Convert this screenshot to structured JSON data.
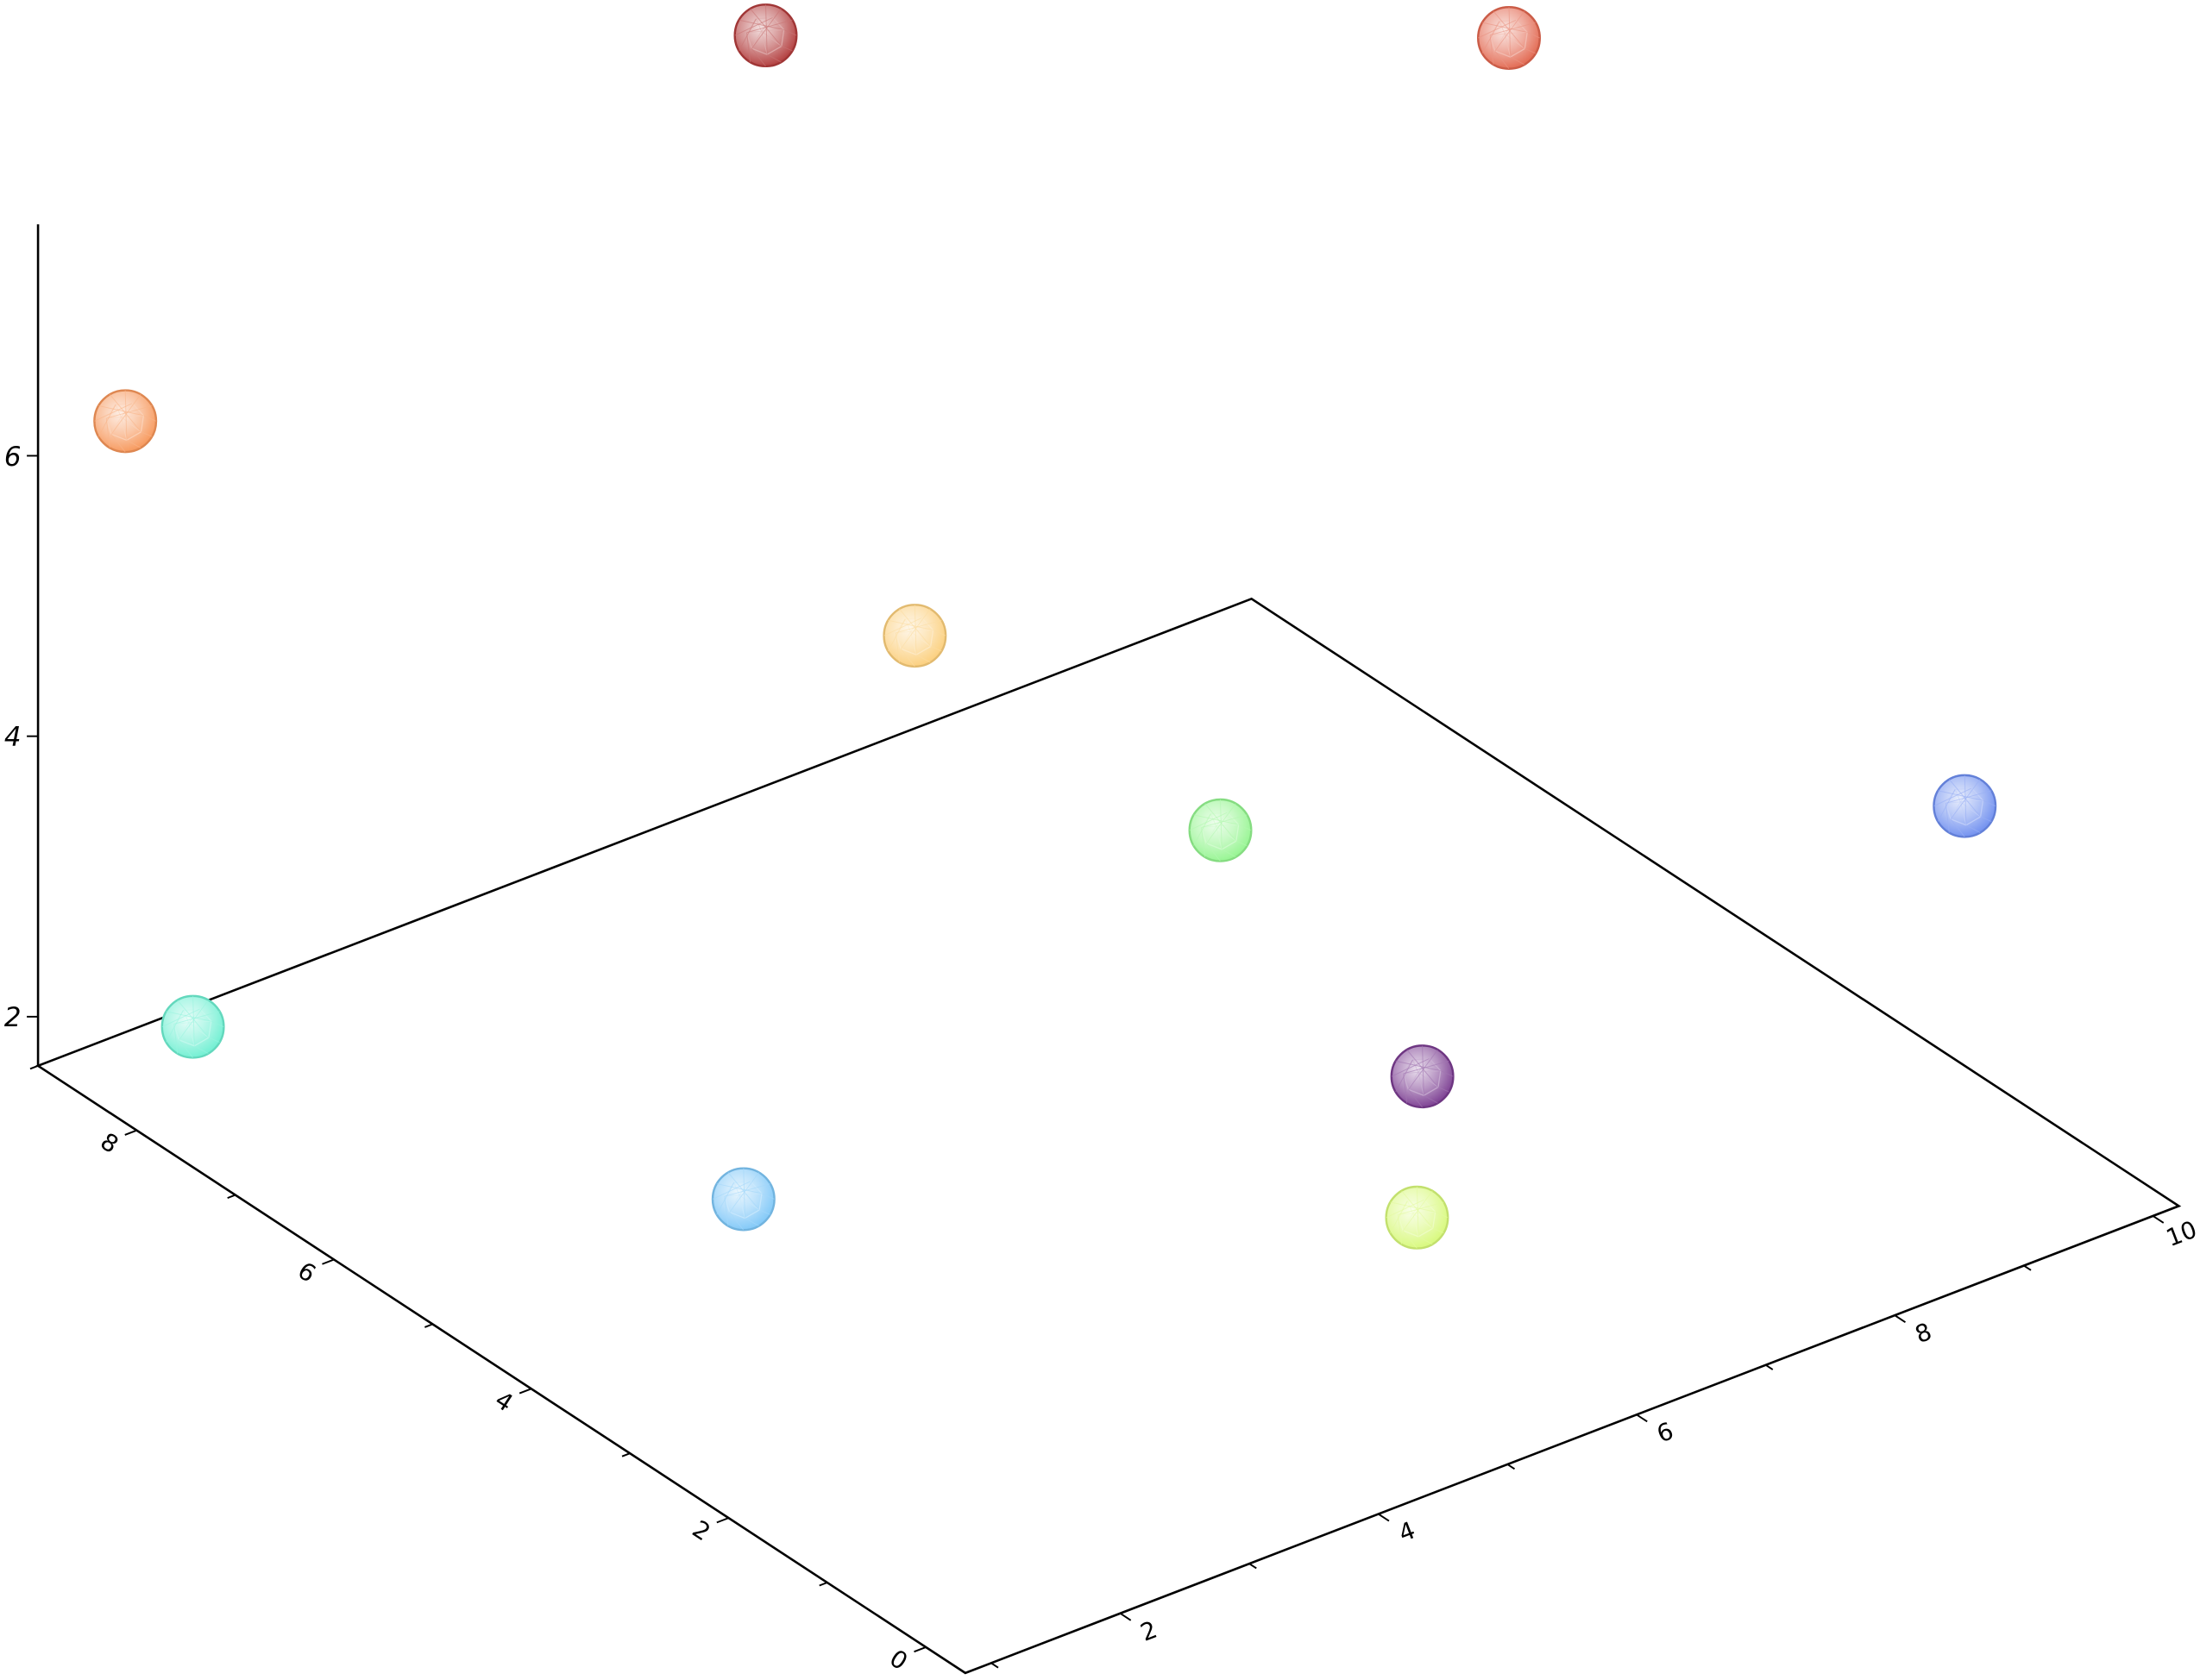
{
  "chart_data": {
    "type": "scatter3d",
    "title": "",
    "xlabel": "",
    "ylabel": "",
    "zlabel": "",
    "xlim": [
      0.8,
      10.2
    ],
    "ylim": [
      -0.4,
      9.0
    ],
    "zlim": [
      1.65,
      7.65
    ],
    "grid": false,
    "legend": "none",
    "marker": "faceted-sphere",
    "x_ticks": [
      {
        "value": 2,
        "label": "2"
      },
      {
        "value": 4,
        "label": "4"
      },
      {
        "value": 6,
        "label": "6"
      },
      {
        "value": 8,
        "label": "8"
      },
      {
        "value": 10,
        "label": "10"
      }
    ],
    "y_ticks": [
      {
        "value": 0,
        "label": "0"
      },
      {
        "value": 2,
        "label": "2"
      },
      {
        "value": 4,
        "label": "4"
      },
      {
        "value": 6,
        "label": "6"
      },
      {
        "value": 8,
        "label": "8"
      }
    ],
    "z_ticks": [
      {
        "value": 2,
        "label": "2"
      },
      {
        "value": 4,
        "label": "4"
      },
      {
        "value": 6,
        "label": "6"
      }
    ],
    "points": [
      {
        "x": 4.87,
        "y": 6.95,
        "z": 8.5,
        "color": "#b23c3c"
      },
      {
        "x": 9.0,
        "y": 4.82,
        "z": 8.0,
        "color": "#e2674f"
      },
      {
        "x": 1.17,
        "y": 8.6,
        "z": 6.3,
        "color": "#f7975a"
      },
      {
        "x": 5.2,
        "y": 5.87,
        "z": 4.6,
        "color": "#fccf7c"
      },
      {
        "x": 6.39,
        "y": 4.33,
        "z": 3.5,
        "color": "#94f590"
      },
      {
        "x": 9.68,
        "y": 1.09,
        "z": 4.0,
        "color": "#6f8ff0"
      },
      {
        "x": 1.48,
        "y": 8.32,
        "z": 2.0,
        "color": "#6ff0d2"
      },
      {
        "x": 6.9,
        "y": 2.95,
        "z": 2.2,
        "color": "#7b3d91"
      },
      {
        "x": 2.36,
        "y": 3.89,
        "z": 2.5,
        "color": "#7fc8f8"
      },
      {
        "x": 5.3,
        "y": 0.91,
        "z": 2.7,
        "color": "#d8f97a"
      }
    ]
  }
}
